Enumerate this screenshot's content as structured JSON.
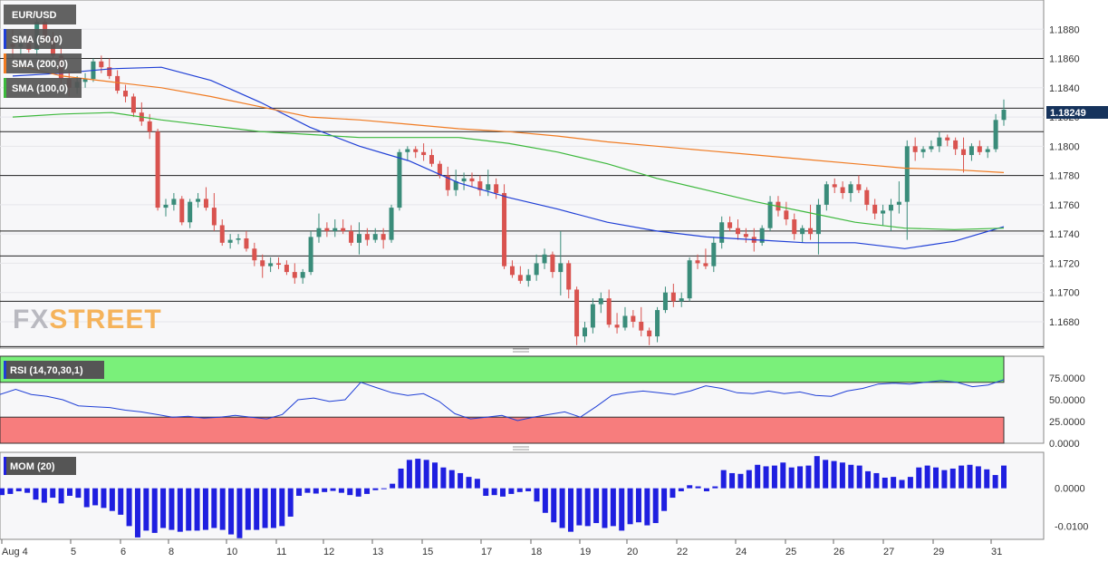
{
  "chart_data": [
    {
      "type": "candlestick",
      "symbol": "EUR/USD",
      "last_price_label": "1.18249",
      "ylim": [
        1.1662,
        1.19
      ],
      "y_ticks": [
        "1.1880",
        "1.1860",
        "1.1840",
        "1.1820",
        "1.1800",
        "1.1780",
        "1.1760",
        "1.1740",
        "1.1720",
        "1.1700",
        "1.1680"
      ],
      "horizontal_levels": [
        1.186,
        1.1826,
        1.181,
        1.178,
        1.1742,
        1.1725,
        1.1694,
        1.1663
      ],
      "x_labels": [
        "Aug 4",
        "5",
        "6",
        "8",
        "10",
        "11",
        "12",
        "13",
        "15",
        "17",
        "18",
        "19",
        "20",
        "22",
        "24",
        "25",
        "26",
        "27",
        "29",
        "31"
      ],
      "candles": [
        [
          1.187,
          1.188,
          1.186,
          1.1868
        ],
        [
          1.1868,
          1.1878,
          1.1862,
          1.187
        ],
        [
          1.187,
          1.1876,
          1.1864,
          1.1866
        ],
        [
          1.1866,
          1.189,
          1.1862,
          1.1885
        ],
        [
          1.1885,
          1.1888,
          1.187,
          1.1874
        ],
        [
          1.1874,
          1.1878,
          1.186,
          1.1862
        ],
        [
          1.1862,
          1.1868,
          1.184,
          1.1846
        ],
        [
          1.1846,
          1.1852,
          1.1834,
          1.184
        ],
        [
          1.184,
          1.1848,
          1.1836,
          1.1844
        ],
        [
          1.1844,
          1.185,
          1.184,
          1.1846
        ],
        [
          1.1846,
          1.186,
          1.1844,
          1.1858
        ],
        [
          1.1858,
          1.1862,
          1.185,
          1.1854
        ],
        [
          1.1854,
          1.186,
          1.1846,
          1.1848
        ],
        [
          1.1848,
          1.1852,
          1.1836,
          1.1838
        ],
        [
          1.1838,
          1.1842,
          1.183,
          1.1834
        ],
        [
          1.1834,
          1.1836,
          1.182,
          1.1823
        ],
        [
          1.1823,
          1.183,
          1.1814,
          1.1817
        ],
        [
          1.1817,
          1.1822,
          1.1805,
          1.181
        ],
        [
          1.181,
          1.1812,
          1.1756,
          1.1758
        ],
        [
          1.1758,
          1.1764,
          1.1752,
          1.176
        ],
        [
          1.176,
          1.1768,
          1.1756,
          1.1764
        ],
        [
          1.1764,
          1.1766,
          1.1746,
          1.1748
        ],
        [
          1.1748,
          1.1764,
          1.1744,
          1.1762
        ],
        [
          1.1762,
          1.1768,
          1.1758,
          1.1764
        ],
        [
          1.1764,
          1.1772,
          1.1756,
          1.1758
        ],
        [
          1.1758,
          1.1768,
          1.1742,
          1.1746
        ],
        [
          1.1746,
          1.175,
          1.1732,
          1.1734
        ],
        [
          1.1734,
          1.174,
          1.173,
          1.1736
        ],
        [
          1.1736,
          1.174,
          1.1733,
          1.1737
        ],
        [
          1.1737,
          1.1742,
          1.1728,
          1.173
        ],
        [
          1.173,
          1.1734,
          1.1718,
          1.1722
        ],
        [
          1.1722,
          1.1726,
          1.171,
          1.1718
        ],
        [
          1.1718,
          1.1724,
          1.1714,
          1.172
        ],
        [
          1.172,
          1.1724,
          1.1716,
          1.1719
        ],
        [
          1.1719,
          1.1722,
          1.1712,
          1.1714
        ],
        [
          1.1714,
          1.172,
          1.1706,
          1.171
        ],
        [
          1.171,
          1.1716,
          1.1706,
          1.1714
        ],
        [
          1.1714,
          1.1742,
          1.1712,
          1.1738
        ],
        [
          1.1738,
          1.1754,
          1.1734,
          1.1744
        ],
        [
          1.1744,
          1.1748,
          1.1738,
          1.1742
        ],
        [
          1.1742,
          1.175,
          1.1738,
          1.1744
        ],
        [
          1.1744,
          1.175,
          1.174,
          1.1742
        ],
        [
          1.1742,
          1.1746,
          1.1732,
          1.1734
        ],
        [
          1.1734,
          1.1748,
          1.1726,
          1.174
        ],
        [
          1.174,
          1.1744,
          1.1732,
          1.1736
        ],
        [
          1.1736,
          1.1744,
          1.1734,
          1.174
        ],
        [
          1.174,
          1.1744,
          1.173,
          1.1736
        ],
        [
          1.1736,
          1.176,
          1.1734,
          1.1758
        ],
        [
          1.1758,
          1.1798,
          1.1756,
          1.1796
        ],
        [
          1.1796,
          1.18,
          1.179,
          1.1798
        ],
        [
          1.1798,
          1.18,
          1.1792,
          1.1796
        ],
        [
          1.1796,
          1.1802,
          1.179,
          1.1794
        ],
        [
          1.1794,
          1.1798,
          1.1786,
          1.1788
        ],
        [
          1.1788,
          1.179,
          1.1778,
          1.178
        ],
        [
          1.178,
          1.1786,
          1.1766,
          1.177
        ],
        [
          1.177,
          1.1784,
          1.1766,
          1.1776
        ],
        [
          1.1776,
          1.1782,
          1.177,
          1.1778
        ],
        [
          1.1778,
          1.1782,
          1.1772,
          1.1776
        ],
        [
          1.1776,
          1.178,
          1.1766,
          1.177
        ],
        [
          1.177,
          1.1784,
          1.1766,
          1.1774
        ],
        [
          1.1774,
          1.1778,
          1.1764,
          1.1768
        ],
        [
          1.1768,
          1.1774,
          1.1716,
          1.1718
        ],
        [
          1.1718,
          1.1722,
          1.171,
          1.1712
        ],
        [
          1.1712,
          1.1718,
          1.1706,
          1.1708
        ],
        [
          1.1708,
          1.1716,
          1.1704,
          1.1712
        ],
        [
          1.1712,
          1.1726,
          1.1708,
          1.172
        ],
        [
          1.172,
          1.173,
          1.1716,
          1.1726
        ],
        [
          1.1726,
          1.1728,
          1.171,
          1.1714
        ],
        [
          1.1714,
          1.1742,
          1.1698,
          1.172
        ],
        [
          1.172,
          1.1722,
          1.1696,
          1.1702
        ],
        [
          1.1702,
          1.1704,
          1.1664,
          1.167
        ],
        [
          1.167,
          1.168,
          1.1666,
          1.1676
        ],
        [
          1.1676,
          1.1696,
          1.1672,
          1.1692
        ],
        [
          1.1692,
          1.17,
          1.1686,
          1.1696
        ],
        [
          1.1696,
          1.1702,
          1.1676,
          1.1678
        ],
        [
          1.1678,
          1.1686,
          1.1672,
          1.1676
        ],
        [
          1.1676,
          1.169,
          1.1674,
          1.1684
        ],
        [
          1.1684,
          1.1688,
          1.1676,
          1.168
        ],
        [
          1.168,
          1.169,
          1.167,
          1.1674
        ],
        [
          1.1674,
          1.1676,
          1.1664,
          1.167
        ],
        [
          1.167,
          1.169,
          1.1666,
          1.1688
        ],
        [
          1.1688,
          1.1704,
          1.1686,
          1.17
        ],
        [
          1.17,
          1.1706,
          1.169,
          1.1694
        ],
        [
          1.1694,
          1.17,
          1.169,
          1.1696
        ],
        [
          1.1696,
          1.1724,
          1.1694,
          1.1722
        ],
        [
          1.1722,
          1.1726,
          1.1716,
          1.172
        ],
        [
          1.172,
          1.173,
          1.1716,
          1.1718
        ],
        [
          1.1718,
          1.1738,
          1.1714,
          1.1734
        ],
        [
          1.1734,
          1.1752,
          1.173,
          1.1748
        ],
        [
          1.1748,
          1.1752,
          1.1742,
          1.1744
        ],
        [
          1.1744,
          1.175,
          1.1736,
          1.174
        ],
        [
          1.174,
          1.1744,
          1.1734,
          1.1738
        ],
        [
          1.1738,
          1.1744,
          1.1728,
          1.1734
        ],
        [
          1.1734,
          1.1746,
          1.1732,
          1.1744
        ],
        [
          1.1744,
          1.1766,
          1.1742,
          1.1762
        ],
        [
          1.1762,
          1.1766,
          1.1752,
          1.1756
        ],
        [
          1.1756,
          1.1762,
          1.1746,
          1.175
        ],
        [
          1.175,
          1.1754,
          1.1736,
          1.174
        ],
        [
          1.174,
          1.1746,
          1.1734,
          1.1744
        ],
        [
          1.1744,
          1.176,
          1.1736,
          1.174
        ],
        [
          1.174,
          1.1764,
          1.1726,
          1.176
        ],
        [
          1.176,
          1.1776,
          1.1756,
          1.1774
        ],
        [
          1.1774,
          1.1778,
          1.1768,
          1.1772
        ],
        [
          1.1772,
          1.1776,
          1.1764,
          1.1768
        ],
        [
          1.1768,
          1.1776,
          1.1762,
          1.1774
        ],
        [
          1.1774,
          1.178,
          1.1768,
          1.177
        ],
        [
          1.177,
          1.1772,
          1.1756,
          1.176
        ],
        [
          1.176,
          1.1764,
          1.175,
          1.1754
        ],
        [
          1.1754,
          1.176,
          1.1746,
          1.1756
        ],
        [
          1.1756,
          1.1764,
          1.1742,
          1.176
        ],
        [
          1.176,
          1.1776,
          1.1754,
          1.1762
        ],
        [
          1.1762,
          1.1804,
          1.1736,
          1.18
        ],
        [
          1.18,
          1.1806,
          1.179,
          1.1796
        ],
        [
          1.1796,
          1.18,
          1.1792,
          1.1798
        ],
        [
          1.1798,
          1.1804,
          1.1796,
          1.18
        ],
        [
          1.18,
          1.181,
          1.1796,
          1.1806
        ],
        [
          1.1806,
          1.1808,
          1.18,
          1.1804
        ],
        [
          1.1804,
          1.1806,
          1.1794,
          1.1798
        ],
        [
          1.1798,
          1.1806,
          1.1782,
          1.1794
        ],
        [
          1.1794,
          1.1802,
          1.179,
          1.18
        ],
        [
          1.18,
          1.1804,
          1.1794,
          1.1796
        ],
        [
          1.1796,
          1.18,
          1.1792,
          1.1798
        ],
        [
          1.1798,
          1.1822,
          1.1796,
          1.1818
        ],
        [
          1.1818,
          1.1832,
          1.1814,
          1.1825
        ]
      ],
      "indicators": [
        {
          "label": "SMA (50,0)",
          "color": "#1f3fd6",
          "values": [
            1.1848,
            1.185,
            1.1853,
            1.1854,
            1.1845,
            1.183,
            1.1813,
            1.18,
            1.179,
            1.1775,
            1.1765,
            1.1757,
            1.1748,
            1.1742,
            1.1738,
            1.1736,
            1.1734,
            1.1734,
            1.173,
            1.1735,
            1.1745
          ]
        },
        {
          "label": "SMA (200,0)",
          "color": "#f07b22",
          "values": [
            1.1856,
            1.1848,
            1.1844,
            1.184,
            1.1834,
            1.1827,
            1.182,
            1.1818,
            1.1815,
            1.1812,
            1.181,
            1.1807,
            1.1803,
            1.18,
            1.1797,
            1.1794,
            1.1791,
            1.1788,
            1.1785,
            1.1784,
            1.1782
          ]
        },
        {
          "label": "SMA (100,0)",
          "color": "#3cb83c",
          "values": [
            1.182,
            1.1822,
            1.1823,
            1.1818,
            1.1814,
            1.181,
            1.1808,
            1.1806,
            1.1806,
            1.1806,
            1.1802,
            1.1796,
            1.1788,
            1.1778,
            1.177,
            1.1762,
            1.1755,
            1.1748,
            1.1744,
            1.1743,
            1.1744
          ]
        }
      ]
    },
    {
      "type": "line",
      "label": "RSI (14,70,30,1)",
      "ylim": [
        0,
        100
      ],
      "overbought": 70,
      "oversold": 30,
      "y_ticks": [
        "75.0000",
        "50.0000",
        "25.0000",
        "0.0000"
      ],
      "color": "#1f3fd6",
      "values": [
        56,
        62,
        56,
        54,
        50,
        43,
        42,
        41,
        38,
        36,
        33,
        30,
        31,
        29,
        30,
        32,
        30,
        28,
        33,
        50,
        52,
        48,
        50,
        70,
        64,
        58,
        55,
        57,
        48,
        34,
        28,
        30,
        32,
        26,
        30,
        33,
        36,
        30,
        42,
        55,
        58,
        60,
        58,
        56,
        60,
        66,
        63,
        58,
        57,
        60,
        57,
        59,
        55,
        54,
        60,
        63,
        68,
        69,
        68,
        70,
        72,
        70,
        65,
        67,
        73
      ]
    },
    {
      "type": "bar",
      "label": "MOM (20)",
      "ylim": [
        -0.0135,
        0.0095
      ],
      "y_ticks": [
        "0.0000",
        "-0.0100"
      ],
      "color": "#1f1fe0",
      "values": [
        -0.0018,
        -0.0015,
        -0.0008,
        -0.0012,
        -0.003,
        -0.0038,
        -0.0025,
        -0.004,
        -0.002,
        -0.0025,
        -0.005,
        -0.0045,
        -0.0052,
        -0.006,
        -0.007,
        -0.01,
        -0.013,
        -0.0112,
        -0.0118,
        -0.0105,
        -0.011,
        -0.0115,
        -0.0112,
        -0.0112,
        -0.011,
        -0.0105,
        -0.011,
        -0.0122,
        -0.0132,
        -0.011,
        -0.011,
        -0.0105,
        -0.0105,
        -0.01,
        -0.0075,
        -0.002,
        -0.0012,
        -0.0014,
        -0.001,
        -0.0007,
        -0.0012,
        -0.0018,
        -0.0022,
        -0.0015,
        -0.0005,
        0.0,
        0.0012,
        0.0052,
        0.0075,
        0.0078,
        0.0075,
        0.0068,
        0.0055,
        0.0048,
        0.004,
        0.003,
        0.0025,
        -0.002,
        -0.0018,
        -0.0022,
        -0.0015,
        -0.001,
        -0.0008,
        -0.0035,
        -0.0065,
        -0.009,
        -0.0105,
        -0.0115,
        -0.0098,
        -0.01,
        -0.0092,
        -0.0105,
        -0.01,
        -0.0112,
        -0.0095,
        -0.009,
        -0.0098,
        -0.0092,
        -0.006,
        -0.0025,
        -0.0008,
        0.0008,
        0.0005,
        -0.0008,
        0.0005,
        0.0048,
        0.004,
        0.0038,
        0.0048,
        0.0062,
        0.0058,
        0.006,
        0.0068,
        0.0055,
        0.0058,
        0.006,
        0.0085,
        0.0075,
        0.0072,
        0.0068,
        0.0062,
        0.006,
        0.0045,
        0.004,
        0.0028,
        0.003,
        0.0022,
        0.003,
        0.0055,
        0.006,
        0.0055,
        0.0048,
        0.0052,
        0.006,
        0.0062,
        0.0058,
        0.005,
        0.0035,
        0.006
      ]
    }
  ],
  "watermark": "FXSTREET"
}
